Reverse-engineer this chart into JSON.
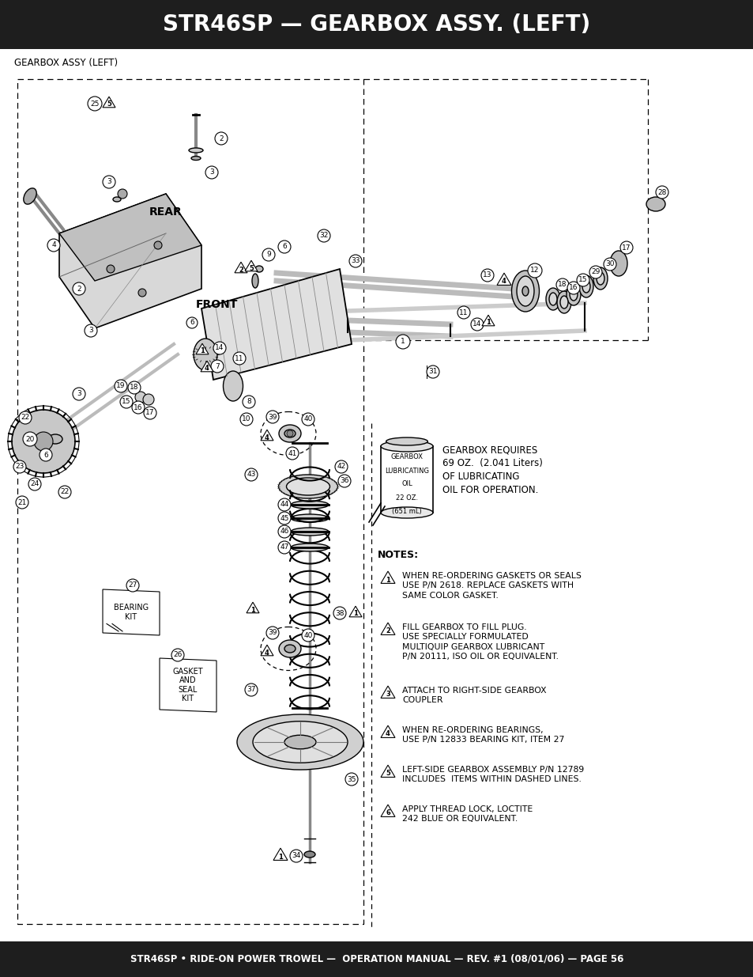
{
  "title": "STR46SP — GEARBOX ASSY. (LEFT)",
  "footer": "STR46SP • RIDE-ON POWER TROWEL —  OPERATION MANUAL — REV. #1 (08/01/06) — PAGE 56",
  "header_bg": "#1e1e1e",
  "footer_bg": "#1e1e1e",
  "header_text_color": "#ffffff",
  "footer_text_color": "#ffffff",
  "page_bg": "#ffffff",
  "subtitle": "GEARBOX ASSY (LEFT)",
  "oil_can_lines": [
    "GEARBOX",
    "LUBRICATING",
    "OIL",
    "22 OZ.",
    "(651 mL)"
  ],
  "gearbox_note": "GEARBOX REQUIRES\n69 OZ.  (2.041 Liters)\nOF LUBRICATING\nOIL FOR OPERATION.",
  "notes_title": "NOTES:",
  "notes": [
    "WHEN RE-ORDERING GASKETS OR SEALS\nUSE P/N 2618. REPLACE GASKETS WITH\nSAME COLOR GASKET.",
    "FILL GEARBOX TO FILL PLUG.\nUSE SPECIALLY FORMULATED\nMULTIQUIP GEARBOX LUBRICANT\nP/N 20111, ISO OIL OR EQUIVALENT.",
    "ATTACH TO RIGHT-SIDE GEARBOX\nCOUPLER",
    "WHEN RE-ORDERING BEARINGS,\nUSE P/N 12833 BEARING KIT, ITEM 27",
    "LEFT-SIDE GEARBOX ASSEMBLY P/N 12789\nINCLUDES  ITEMS WITHIN DASHED LINES.",
    "APPLY THREAD LOCK, LOCTITE\n242 BLUE OR EQUIVALENT."
  ],
  "bearing_kit_label": "BEARING\nKIT",
  "gasket_label": "GASKET\nAND\nSEAL\nKIT",
  "front_label": "FRONT",
  "rear_label": "REAR"
}
